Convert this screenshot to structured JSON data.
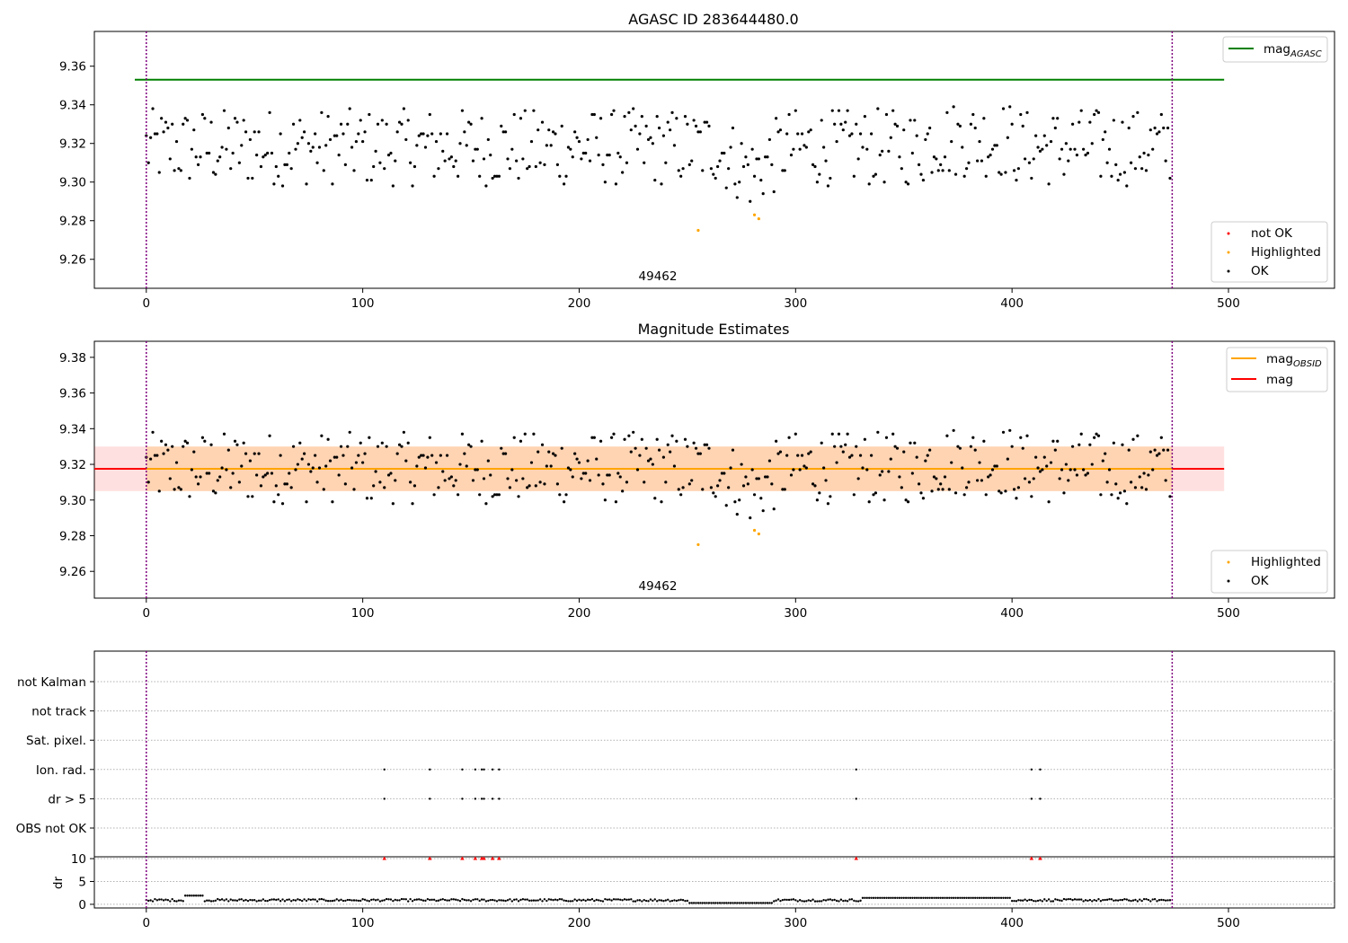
{
  "colors": {
    "agasc_line": "#008000",
    "obsid_line": "#ffa500",
    "mag_line": "#ff0000",
    "ok_point": "#000000",
    "highlight_point": "#ffa500",
    "notok_point": "#ff0000",
    "obsid_band": "#ffa500",
    "mag_band": "#ff0000",
    "obs_boundary": "#800080",
    "grid": "#b0b0b0"
  },
  "chart_data": [
    {
      "type": "scatter",
      "title": "AGASC ID 283644480.0",
      "xlim": [
        -24,
        549
      ],
      "ylim": [
        9.245,
        9.378
      ],
      "xticks": [
        0,
        100,
        200,
        300,
        400,
        500
      ],
      "yticks": [
        9.26,
        9.28,
        9.3,
        9.32,
        9.34,
        9.36
      ],
      "obs_boundaries": [
        0,
        474
      ],
      "obsid_label": "49462",
      "agasc_mag": 9.353,
      "line_xrange": [
        -24,
        498
      ],
      "highlighted": [
        [
          255,
          9.275
        ],
        [
          281,
          9.283
        ],
        [
          283,
          9.281
        ]
      ],
      "not_ok": [],
      "legend_top": [
        {
          "label": "mag",
          "sub": "AGASC",
          "color": "#008000",
          "kind": "line"
        }
      ],
      "legend_bottom": [
        {
          "label": "not OK",
          "color": "#ff0000",
          "kind": "point"
        },
        {
          "label": "Highlighted",
          "color": "#ffa500",
          "kind": "point"
        },
        {
          "label": "OK",
          "color": "#000000",
          "kind": "point"
        }
      ]
    },
    {
      "type": "scatter",
      "title": "Magnitude Estimates",
      "xlim": [
        -24,
        549
      ],
      "ylim": [
        9.245,
        9.389
      ],
      "xticks": [
        0,
        100,
        200,
        300,
        400,
        500
      ],
      "yticks": [
        9.26,
        9.28,
        9.3,
        9.32,
        9.34,
        9.36,
        9.38
      ],
      "obs_boundaries": [
        0,
        474
      ],
      "obsid_label": "49462",
      "mag_obsid": 9.3175,
      "mag": 9.3175,
      "mag_band": [
        9.305,
        9.33
      ],
      "obsid_band": [
        9.305,
        9.33
      ],
      "line_xrange": [
        -24,
        498
      ],
      "highlighted": [
        [
          255,
          9.275
        ],
        [
          281,
          9.283
        ],
        [
          283,
          9.281
        ]
      ],
      "legend_top": [
        {
          "label": "mag",
          "sub": "OBSID",
          "color": "#ffa500",
          "kind": "line"
        },
        {
          "label": "mag",
          "sub": "",
          "color": "#ff0000",
          "kind": "line"
        }
      ],
      "legend_bottom": [
        {
          "label": "Highlighted",
          "color": "#ffa500",
          "kind": "point"
        },
        {
          "label": "OK",
          "color": "#000000",
          "kind": "point"
        }
      ]
    },
    {
      "type": "scatter",
      "title": "",
      "xlim": [
        -24,
        549
      ],
      "xticks": [
        0,
        100,
        200,
        300,
        400,
        500
      ],
      "obs_boundaries": [
        0,
        474
      ],
      "flag_categories": [
        "not Kalman",
        "not track",
        "Sat. pixel.",
        "Ion. rad.",
        "dr > 5",
        "OBS not OK"
      ],
      "flag_points": {
        "Ion. rad.": [
          110,
          131,
          146,
          152,
          155,
          156,
          160,
          163,
          328,
          409,
          413
        ],
        "dr > 5": [
          110,
          131,
          146,
          152,
          155,
          156,
          160,
          163,
          328,
          409,
          413
        ]
      },
      "dr_ylabel": "dr",
      "dr_yticks": [
        0,
        5,
        10
      ],
      "dr_ylim": [
        -0.8,
        10.4
      ],
      "dr_outliers": [
        110,
        131,
        146,
        152,
        155,
        156,
        160,
        163,
        328,
        409,
        413
      ],
      "dr_outlier_value": 10
    }
  ]
}
